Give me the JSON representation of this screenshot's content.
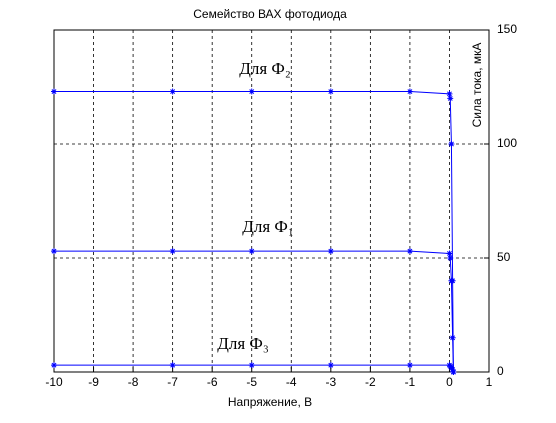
{
  "chart_data": {
    "type": "line",
    "title": "Семейство ВАХ фотодиода",
    "xlabel": "Напряжение, В",
    "ylabel": "Сила тока, мкА",
    "x": [
      -10,
      -7,
      -5,
      -3,
      -1,
      0,
      0.02,
      0.05,
      0.08,
      0.1
    ],
    "series": [
      {
        "color": "#0000ff",
        "values": [
          123,
          123,
          123,
          123,
          123,
          122,
          120,
          100,
          40,
          0
        ]
      },
      {
        "color": "#0000ff",
        "values": [
          53,
          53,
          53,
          53,
          53,
          52,
          50,
          40,
          15,
          0
        ]
      },
      {
        "color": "#0000ff",
        "values": [
          3,
          3,
          3,
          3,
          3,
          3,
          2.5,
          2,
          1,
          0
        ]
      }
    ],
    "annotations": [
      "Для Ф₂",
      "Для Ф₁",
      "Для Ф₃"
    ],
    "xlim": [
      -10,
      1
    ],
    "ylim": [
      0,
      150
    ],
    "xticks": [
      -10,
      -9,
      -8,
      -7,
      -6,
      -5,
      -4,
      -3,
      -2,
      -1,
      0,
      1
    ],
    "yticks": [
      0,
      50,
      100,
      150
    ],
    "grid": true,
    "yaxis_side": "right"
  }
}
